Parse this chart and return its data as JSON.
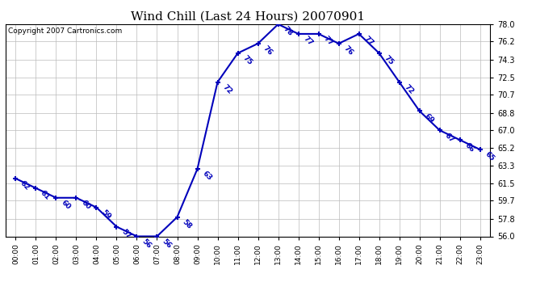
{
  "title": "Wind Chill (Last 24 Hours) 20070901",
  "copyright": "Copyright 2007 Cartronics.com",
  "hours": [
    0,
    1,
    2,
    3,
    4,
    5,
    6,
    7,
    8,
    9,
    10,
    11,
    12,
    13,
    14,
    15,
    16,
    17,
    18,
    19,
    20,
    21,
    22,
    23
  ],
  "values": [
    62,
    61,
    60,
    60,
    59,
    57,
    56,
    56,
    58,
    63,
    72,
    75,
    76,
    78,
    77,
    77,
    76,
    77,
    75,
    72,
    69,
    67,
    66,
    65
  ],
  "ylim": [
    56.0,
    78.0
  ],
  "yticks": [
    56.0,
    57.8,
    59.7,
    61.5,
    63.3,
    65.2,
    67.0,
    68.8,
    70.7,
    72.5,
    74.3,
    76.2,
    78.0
  ],
  "line_color": "#0000bb",
  "marker_color": "#0000bb",
  "grid_color": "#bbbbbb",
  "background_color": "#ffffff",
  "title_fontsize": 11,
  "label_fontsize": 6.5,
  "copyright_fontsize": 6.5
}
